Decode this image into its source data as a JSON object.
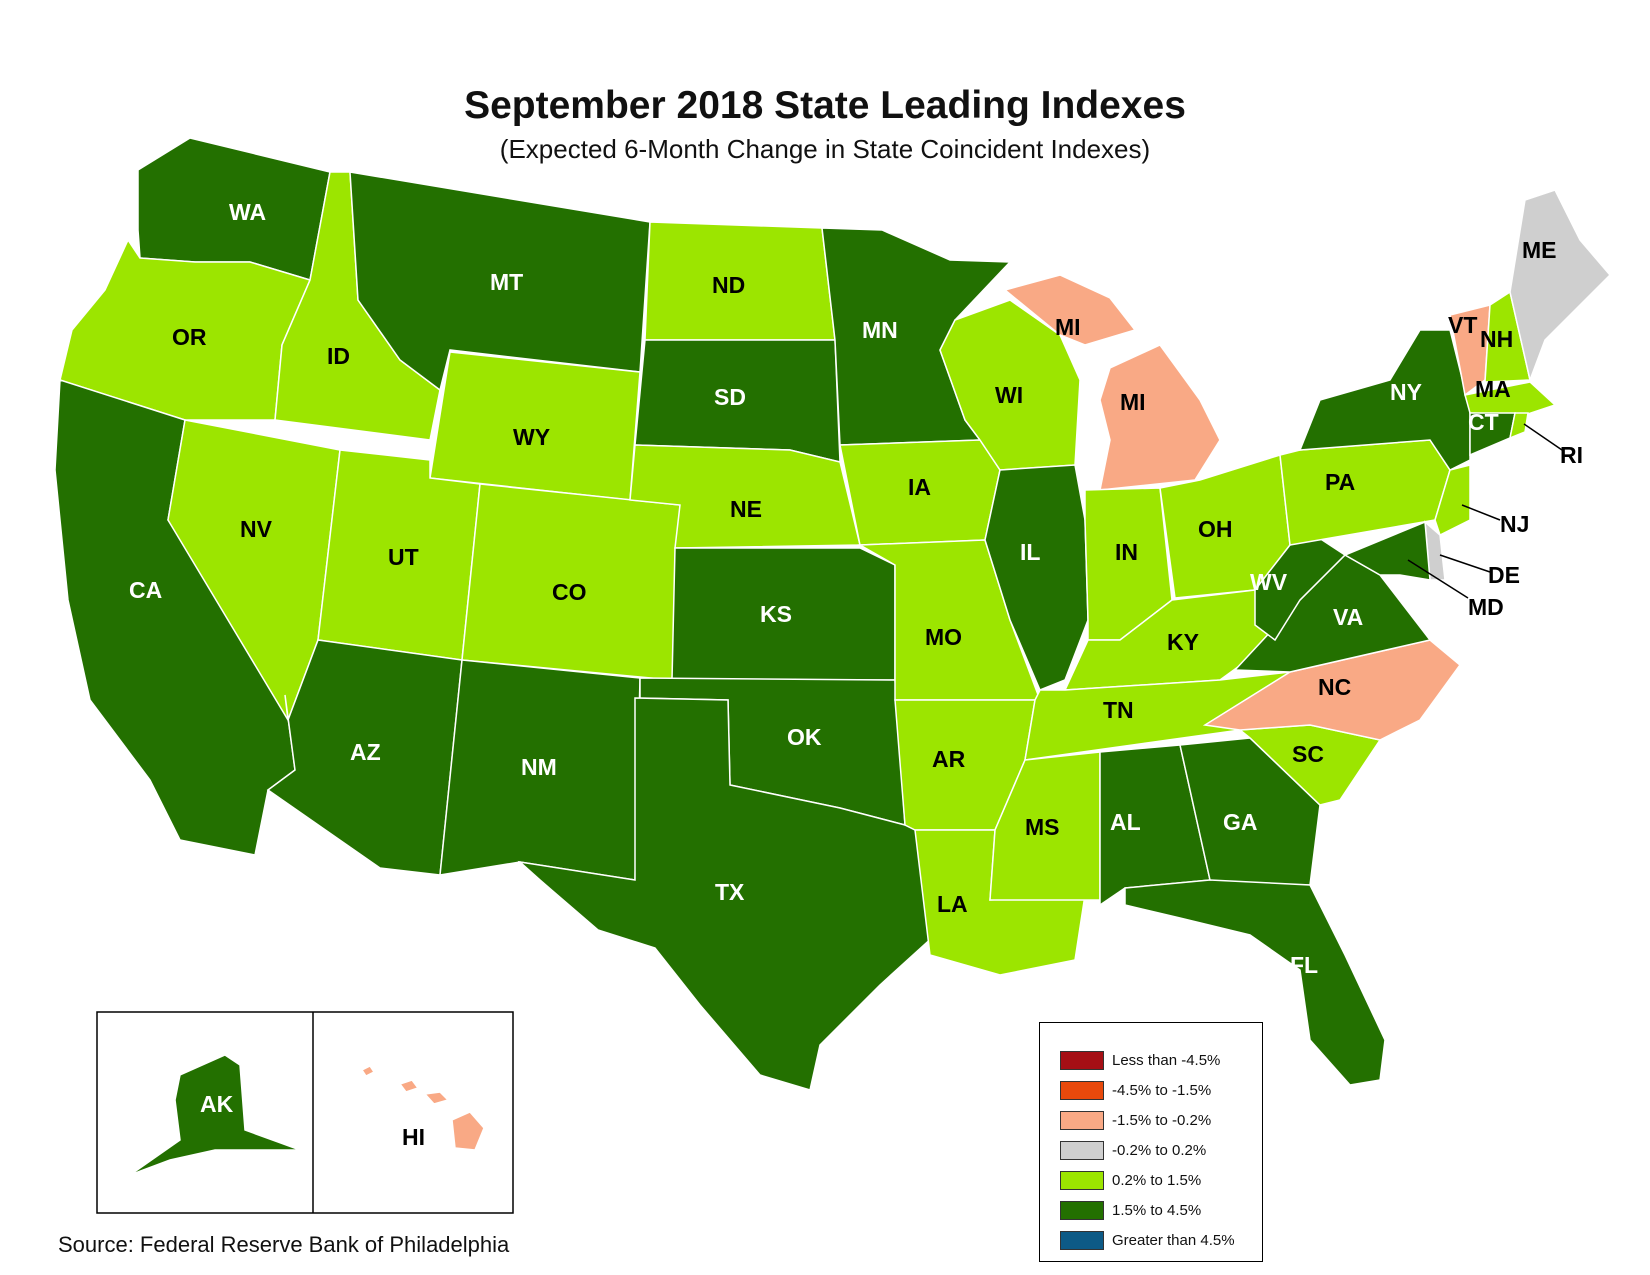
{
  "title": "September 2018 State Leading Indexes",
  "subtitle": "(Expected 6-Month Change in State Coincident Indexes)",
  "source": "Source: Federal Reserve Bank of Philadelphia",
  "colors": {
    "lt_-4.5": "#a50f15",
    "-4.5_-1.5": "#e8490c",
    "-1.5_-0.2": "#f9a985",
    "-0.2_0.2": "#cfcfcf",
    "0.2_1.5": "#9ce500",
    "1.5_4.5": "#237000",
    "gt_4.5": "#0d5a86"
  },
  "legend": {
    "items": [
      {
        "label": "Less than -4.5%",
        "category": "lt_-4.5"
      },
      {
        "label": "-4.5% to -1.5%",
        "category": "-4.5_-1.5"
      },
      {
        "label": "-1.5% to -0.2%",
        "category": "-1.5_-0.2"
      },
      {
        "label": "-0.2% to 0.2%",
        "category": "-0.2_0.2"
      },
      {
        "label": "0.2% to 1.5%",
        "category": "0.2_1.5"
      },
      {
        "label": "1.5% to 4.5%",
        "category": "1.5_4.5"
      },
      {
        "label": "Greater than 4.5%",
        "category": "gt_4.5"
      }
    ]
  },
  "states": {
    "WA": {
      "label": "WA",
      "category": "1.5_4.5"
    },
    "OR": {
      "label": "OR",
      "category": "0.2_1.5"
    },
    "CA": {
      "label": "CA",
      "category": "1.5_4.5"
    },
    "ID": {
      "label": "ID",
      "category": "0.2_1.5"
    },
    "NV": {
      "label": "NV",
      "category": "0.2_1.5"
    },
    "MT": {
      "label": "MT",
      "category": "1.5_4.5"
    },
    "WY": {
      "label": "WY",
      "category": "0.2_1.5"
    },
    "UT": {
      "label": "UT",
      "category": "0.2_1.5"
    },
    "AZ": {
      "label": "AZ",
      "category": "1.5_4.5"
    },
    "CO": {
      "label": "CO",
      "category": "0.2_1.5"
    },
    "NM": {
      "label": "NM",
      "category": "1.5_4.5"
    },
    "ND": {
      "label": "ND",
      "category": "0.2_1.5"
    },
    "SD": {
      "label": "SD",
      "category": "1.5_4.5"
    },
    "NE": {
      "label": "NE",
      "category": "0.2_1.5"
    },
    "KS": {
      "label": "KS",
      "category": "1.5_4.5"
    },
    "OK": {
      "label": "OK",
      "category": "1.5_4.5"
    },
    "TX": {
      "label": "TX",
      "category": "1.5_4.5"
    },
    "MN": {
      "label": "MN",
      "category": "1.5_4.5"
    },
    "IA": {
      "label": "IA",
      "category": "0.2_1.5"
    },
    "MO": {
      "label": "MO",
      "category": "0.2_1.5"
    },
    "AR": {
      "label": "AR",
      "category": "0.2_1.5"
    },
    "LA": {
      "label": "LA",
      "category": "0.2_1.5"
    },
    "WI": {
      "label": "WI",
      "category": "0.2_1.5"
    },
    "IL": {
      "label": "IL",
      "category": "1.5_4.5"
    },
    "MI": {
      "label": "MI",
      "category": "-1.5_-0.2"
    },
    "IN": {
      "label": "IN",
      "category": "0.2_1.5"
    },
    "OH": {
      "label": "OH",
      "category": "0.2_1.5"
    },
    "KY": {
      "label": "KY",
      "category": "0.2_1.5"
    },
    "TN": {
      "label": "TN",
      "category": "0.2_1.5"
    },
    "MS": {
      "label": "MS",
      "category": "0.2_1.5"
    },
    "AL": {
      "label": "AL",
      "category": "1.5_4.5"
    },
    "GA": {
      "label": "GA",
      "category": "1.5_4.5"
    },
    "FL": {
      "label": "FL",
      "category": "1.5_4.5"
    },
    "SC": {
      "label": "SC",
      "category": "0.2_1.5"
    },
    "NC": {
      "label": "NC",
      "category": "-1.5_-0.2"
    },
    "VA": {
      "label": "VA",
      "category": "1.5_4.5"
    },
    "WV": {
      "label": "WV",
      "category": "1.5_4.5"
    },
    "PA": {
      "label": "PA",
      "category": "0.2_1.5"
    },
    "NY": {
      "label": "NY",
      "category": "1.5_4.5"
    },
    "VT": {
      "label": "VT",
      "category": "-1.5_-0.2"
    },
    "NH": {
      "label": "NH",
      "category": "0.2_1.5"
    },
    "ME": {
      "label": "ME",
      "category": "-0.2_0.2"
    },
    "MA": {
      "label": "MA",
      "category": "0.2_1.5"
    },
    "RI": {
      "label": "RI",
      "category": "0.2_1.5"
    },
    "CT": {
      "label": "CT",
      "category": "1.5_4.5"
    },
    "NJ": {
      "label": "NJ",
      "category": "0.2_1.5"
    },
    "DE": {
      "label": "DE",
      "category": "-0.2_0.2"
    },
    "MD": {
      "label": "MD",
      "category": "1.5_4.5"
    },
    "AK": {
      "label": "AK",
      "category": "1.5_4.5"
    },
    "HI": {
      "label": "HI",
      "category": "-1.5_-0.2"
    }
  }
}
